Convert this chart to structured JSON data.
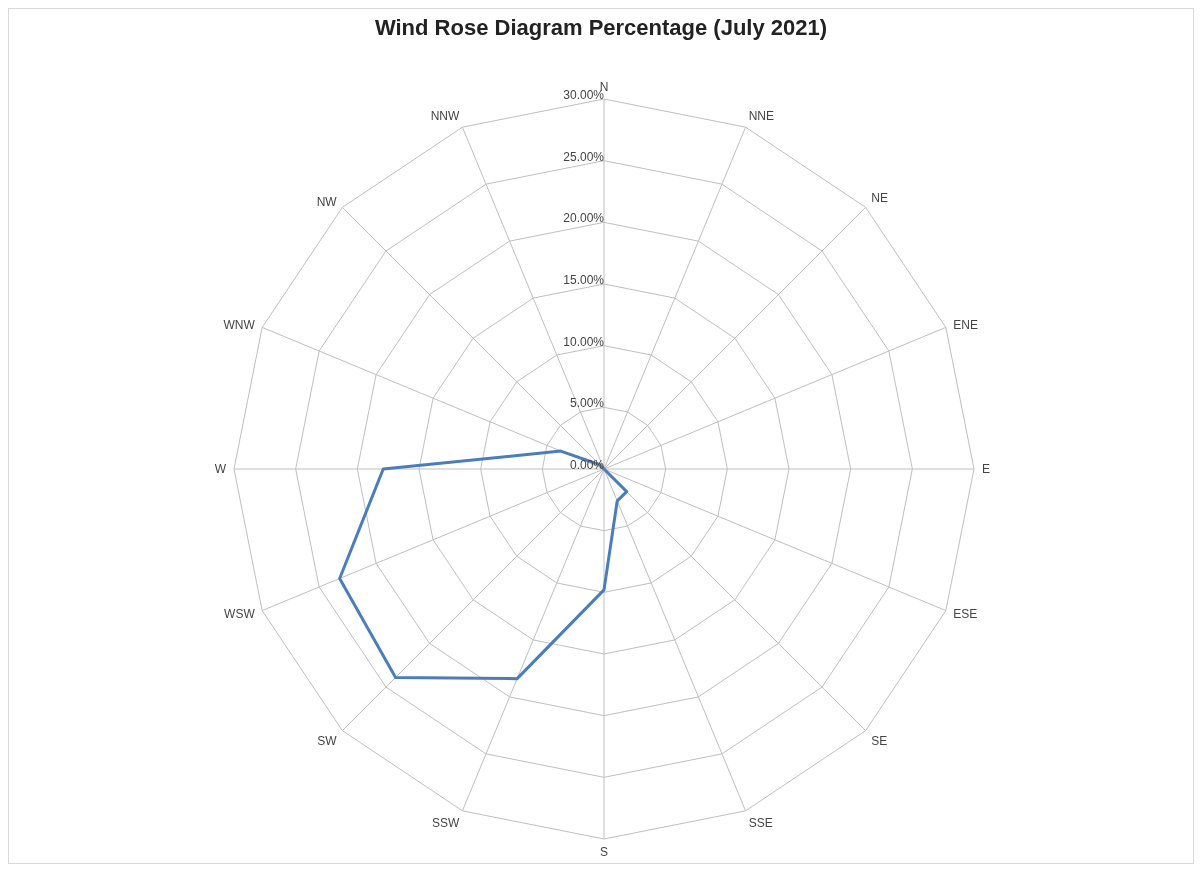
{
  "chart_data": {
    "type": "radar",
    "title": "Wind Rose Diagram Percentage (July 2021)",
    "categories": [
      "N",
      "NNE",
      "NE",
      "ENE",
      "E",
      "ESE",
      "SE",
      "SSE",
      "S",
      "SSW",
      "SW",
      "WSW",
      "W",
      "WNW",
      "NW",
      "NNW"
    ],
    "series": [
      {
        "color": "#4a7ebb",
        "values": [
          0,
          0,
          0,
          0,
          0,
          0,
          2.6,
          2.8,
          9.8,
          18.4,
          23.9,
          23.2,
          17.9,
          3.8,
          0.5,
          0
        ]
      }
    ],
    "ylim": [
      0,
      30
    ],
    "yticks": [
      {
        "value": 0,
        "label": "0.00%"
      },
      {
        "value": 5,
        "label": "5.00%"
      },
      {
        "value": 10,
        "label": "10.00%"
      },
      {
        "value": 15,
        "label": "15.00%"
      },
      {
        "value": 20,
        "label": "20.00%"
      },
      {
        "value": 25,
        "label": "25.00%"
      },
      {
        "value": 30,
        "label": "30.00%"
      }
    ],
    "grid": true,
    "legend": false,
    "marker": "none"
  }
}
